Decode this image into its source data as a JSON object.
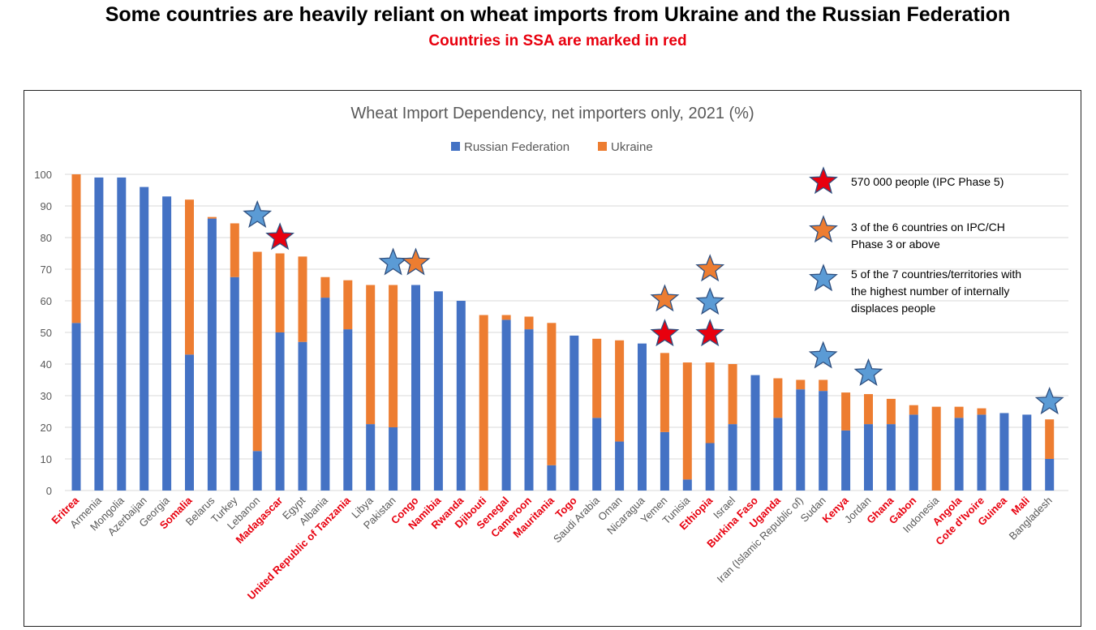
{
  "header": {
    "title": "Some countries are heavily reliant on wheat imports from Ukraine and the Russian Federation",
    "subtitle": "Countries in SSA are marked in red"
  },
  "colors": {
    "russia": "#4472c4",
    "ukraine": "#ed7d31",
    "ssa_label": "#e8000e",
    "other_label": "#595959",
    "star_phase5": "#e8000e",
    "star_ipc": "#ed7d31",
    "star_idp": "#5b9bd5"
  },
  "chart_data": {
    "type": "bar",
    "stacked": true,
    "title": "Wheat Import Dependency, net importers only, 2021 (%)",
    "ylim": [
      0,
      100
    ],
    "yticks": [
      0,
      10,
      20,
      30,
      40,
      50,
      60,
      70,
      80,
      90,
      100
    ],
    "grid": true,
    "legend_position": "top-center",
    "categories": [
      "Eritrea",
      "Armenia",
      "Mongolia",
      "Azerbaijan",
      "Georgia",
      "Somalia",
      "Belarus",
      "Turkey",
      "Lebanon",
      "Madagascar",
      "Egypt",
      "Albania",
      "United Republic of Tanzania",
      "Libya",
      "Pakistan",
      "Congo",
      "Namibia",
      "Rwanda",
      "Djibouti",
      "Senegal",
      "Cameroon",
      "Mauritania",
      "Togo",
      "Saudi Arabia",
      "Oman",
      "Nicaragua",
      "Yemen",
      "Tunisia",
      "Ethiopia",
      "Israel",
      "Burkina Faso",
      "Uganda",
      "Iran (Islamic Republic of)",
      "Sudan",
      "Kenya",
      "Jordan",
      "Ghana",
      "Gabon",
      "Indonesia",
      "Angola",
      "Cote d'Ivoire",
      "Guinea",
      "Mali",
      "Bangladesh"
    ],
    "ssa": [
      true,
      false,
      false,
      false,
      false,
      true,
      false,
      false,
      false,
      true,
      false,
      false,
      true,
      false,
      false,
      true,
      true,
      true,
      true,
      true,
      true,
      true,
      true,
      false,
      false,
      false,
      false,
      false,
      true,
      false,
      true,
      true,
      false,
      false,
      true,
      false,
      true,
      true,
      false,
      true,
      true,
      true,
      true,
      false
    ],
    "series": [
      {
        "name": "Russian Federation",
        "values": [
          53,
          99,
          99,
          96,
          93,
          43,
          86,
          67.5,
          12.5,
          50,
          47,
          61,
          51,
          21,
          20,
          65,
          63,
          60,
          0,
          54,
          51,
          8,
          49,
          23,
          15.5,
          46.5,
          18.5,
          3.5,
          15,
          21,
          36.5,
          23,
          32,
          31.5,
          19,
          21,
          21,
          24,
          0,
          23,
          24,
          24.5,
          24,
          10
        ]
      },
      {
        "name": "Ukraine",
        "values": [
          47,
          0,
          0,
          0,
          0,
          49,
          0.5,
          17,
          63,
          25,
          27,
          6.5,
          15.5,
          44,
          45,
          0,
          0,
          0,
          55.5,
          1.5,
          4,
          45,
          0,
          25,
          32,
          0,
          25,
          37,
          25.5,
          19,
          0,
          12.5,
          3,
          3.5,
          12,
          9.5,
          8,
          3,
          26.5,
          3.5,
          2,
          0,
          0,
          12.5
        ]
      }
    ],
    "markers": [
      {
        "category": "Lebanon",
        "value": 87,
        "type": "idp"
      },
      {
        "category": "Madagascar",
        "value": 80,
        "type": "phase5"
      },
      {
        "category": "Pakistan",
        "value": 72,
        "type": "idp"
      },
      {
        "category": "Congo",
        "value": 72,
        "type": "ipc"
      },
      {
        "category": "Yemen",
        "value": 60.5,
        "type": "ipc"
      },
      {
        "category": "Yemen",
        "value": 49.5,
        "type": "phase5"
      },
      {
        "category": "Ethiopia",
        "value": 70,
        "type": "ipc"
      },
      {
        "category": "Ethiopia",
        "value": 59.5,
        "type": "idp"
      },
      {
        "category": "Ethiopia",
        "value": 49.5,
        "type": "phase5"
      },
      {
        "category": "Sudan",
        "value": 42.5,
        "type": "idp"
      },
      {
        "category": "Jordan",
        "value": 37,
        "type": "idp"
      },
      {
        "category": "Bangladesh",
        "value": 28,
        "type": "idp"
      }
    ],
    "annotations": [
      {
        "type": "phase5",
        "lines": [
          "570 000 people (IPC Phase 5)"
        ]
      },
      {
        "type": "ipc",
        "lines": [
          "3 of the 6 countries on IPC/CH",
          "Phase 3 or above"
        ]
      },
      {
        "type": "idp",
        "lines": [
          "5 of the 7 countries/territories with",
          "the highest number of internally",
          "displaces people"
        ]
      }
    ]
  }
}
